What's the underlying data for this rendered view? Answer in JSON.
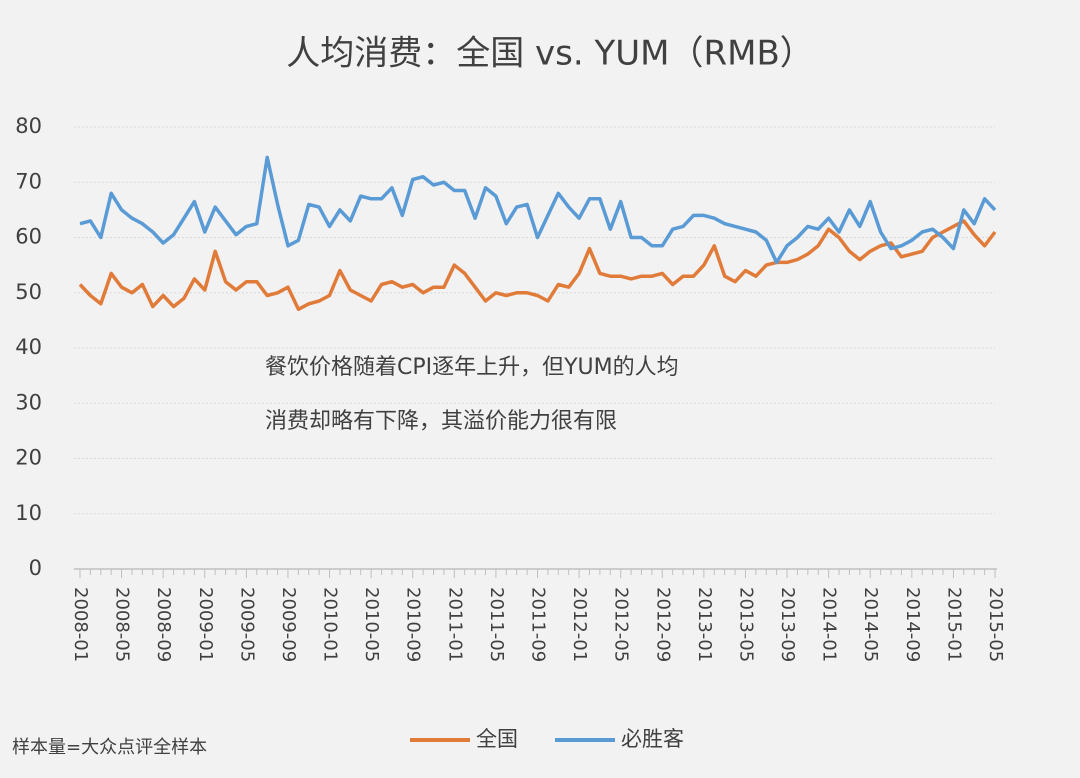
{
  "chart_data": {
    "type": "line",
    "title": "人均消费：全国 vs. YUM（RMB）",
    "annotations": [
      "餐饮价格随着CPI逐年上升，但YUM的人均",
      "消费却略有下降，其溢价能力很有限"
    ],
    "footnote": "样本量=大众点评全样本",
    "categories": [
      "2008-01",
      null,
      null,
      null,
      "2008-05",
      null,
      null,
      null,
      "2008-09",
      null,
      null,
      null,
      "2009-01",
      null,
      null,
      null,
      "2009-05",
      null,
      null,
      null,
      "2009-09",
      null,
      null,
      null,
      "2010-01",
      null,
      null,
      null,
      "2010-05",
      null,
      null,
      null,
      "2010-09",
      null,
      null,
      null,
      "2011-01",
      null,
      null,
      null,
      "2011-05",
      null,
      null,
      null,
      "2011-09",
      null,
      null,
      null,
      "2012-01",
      null,
      null,
      null,
      "2012-05",
      null,
      null,
      null,
      "2012-09",
      null,
      null,
      null,
      "2013-01",
      null,
      null,
      null,
      "2013-05",
      null,
      null,
      null,
      "2013-09",
      null,
      null,
      null,
      "2014-01",
      null,
      null,
      null,
      "2014-05",
      null,
      null,
      null,
      "2014-09",
      null,
      null,
      null,
      "2015-01",
      null,
      null,
      null,
      "2015-05"
    ],
    "series": [
      {
        "name": "全国",
        "color": "#e07b39",
        "values": [
          51.5,
          49.5,
          48,
          53.5,
          51,
          50,
          51.5,
          47.5,
          49.5,
          47.5,
          49,
          52.5,
          50.5,
          57.5,
          52,
          50.5,
          52,
          52,
          49.5,
          50,
          51,
          47,
          48,
          48.5,
          49.5,
          54,
          50.5,
          49.5,
          48.5,
          51.5,
          52,
          51,
          51.5,
          50,
          51,
          51,
          55,
          53.5,
          51,
          48.5,
          50,
          49.5,
          50,
          50,
          49.5,
          48.5,
          51.5,
          51,
          53.5,
          58,
          53.5,
          53,
          53,
          52.5,
          53,
          53,
          53.5,
          51.5,
          53,
          53,
          55,
          58.5,
          53,
          52,
          54,
          53,
          55,
          55.5,
          55.5,
          56,
          57,
          58.5,
          61.5,
          60,
          57.5,
          56,
          57.5,
          58.5,
          59,
          56.5,
          57,
          57.5,
          60,
          61,
          62,
          63,
          60.5,
          58.5,
          61
        ]
      },
      {
        "name": "必胜客",
        "color": "#5b9bd5",
        "values": [
          62.5,
          63,
          60,
          68,
          65,
          63.5,
          62.5,
          61,
          59,
          60.5,
          63.5,
          66.5,
          61,
          65.5,
          63,
          60.5,
          62,
          62.5,
          74.5,
          66,
          58.5,
          59.5,
          66,
          65.5,
          62,
          65,
          63,
          67.5,
          67,
          67,
          69,
          64,
          70.5,
          71,
          69.5,
          70,
          68.5,
          68.5,
          63.5,
          69,
          67.5,
          62.5,
          65.5,
          66,
          60,
          64,
          68,
          65.5,
          63.5,
          67,
          67,
          61.5,
          66.5,
          60,
          60,
          58.5,
          58.5,
          61.5,
          62,
          64,
          64,
          63.5,
          62.5,
          62,
          61.5,
          61,
          59.5,
          55.5,
          58.5,
          60,
          62,
          61.5,
          63.5,
          61,
          65,
          62,
          66.5,
          61,
          58,
          58.5,
          59.5,
          61,
          61.5,
          60,
          58,
          65,
          62.5,
          67,
          65
        ]
      }
    ],
    "ylim": [
      0,
      80
    ],
    "yticks": [
      0,
      10,
      20,
      30,
      40,
      50,
      60,
      70,
      80
    ],
    "grid": true
  }
}
